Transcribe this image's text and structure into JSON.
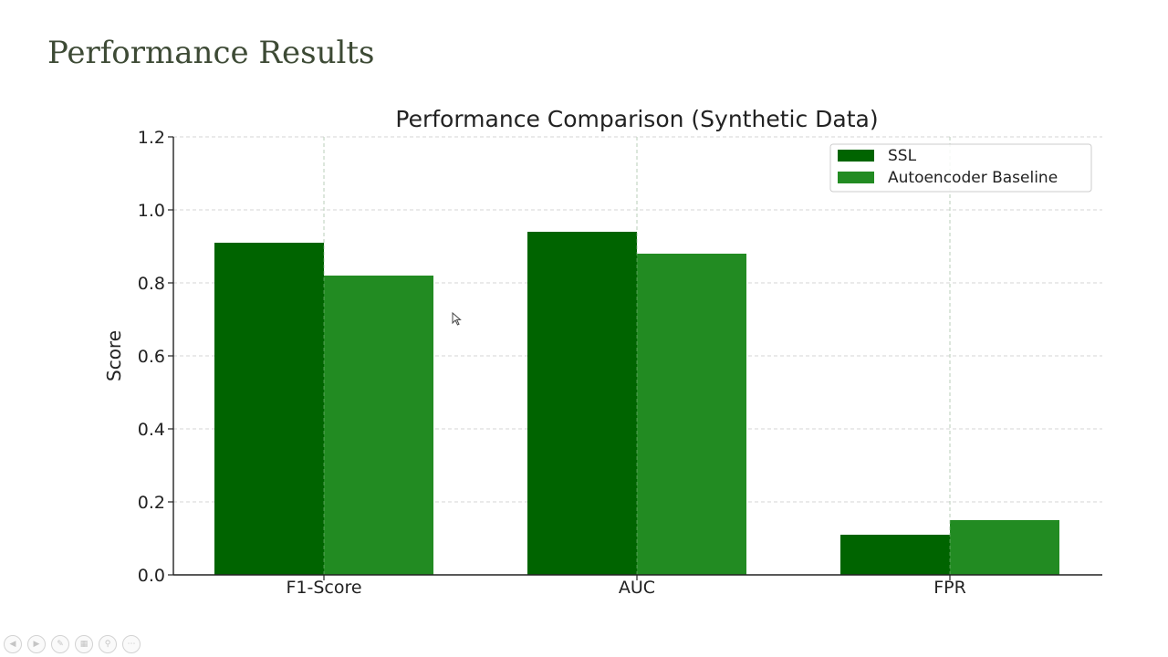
{
  "slide": {
    "title": "Performance Results"
  },
  "chart_data": {
    "type": "bar",
    "title": "Performance Comparison (Synthetic Data)",
    "xlabel": "",
    "ylabel": "Score",
    "categories": [
      "F1-Score",
      "AUC",
      "FPR"
    ],
    "series": [
      {
        "name": "SSL",
        "values": [
          0.91,
          0.94,
          0.11
        ],
        "color": "#006400"
      },
      {
        "name": "Autoencoder Baseline",
        "values": [
          0.82,
          0.88,
          0.15
        ],
        "color": "#228b22"
      }
    ],
    "ylim": [
      0,
      1.2
    ],
    "yticks": [
      "0.0",
      "0.2",
      "0.4",
      "0.6",
      "0.8",
      "1.0",
      "1.2"
    ],
    "grid": true,
    "legend_position": "top-right"
  },
  "toolbar": {
    "icons": [
      "prev-icon",
      "next-icon",
      "pen-icon",
      "slides-icon",
      "zoom-icon",
      "more-icon"
    ]
  }
}
